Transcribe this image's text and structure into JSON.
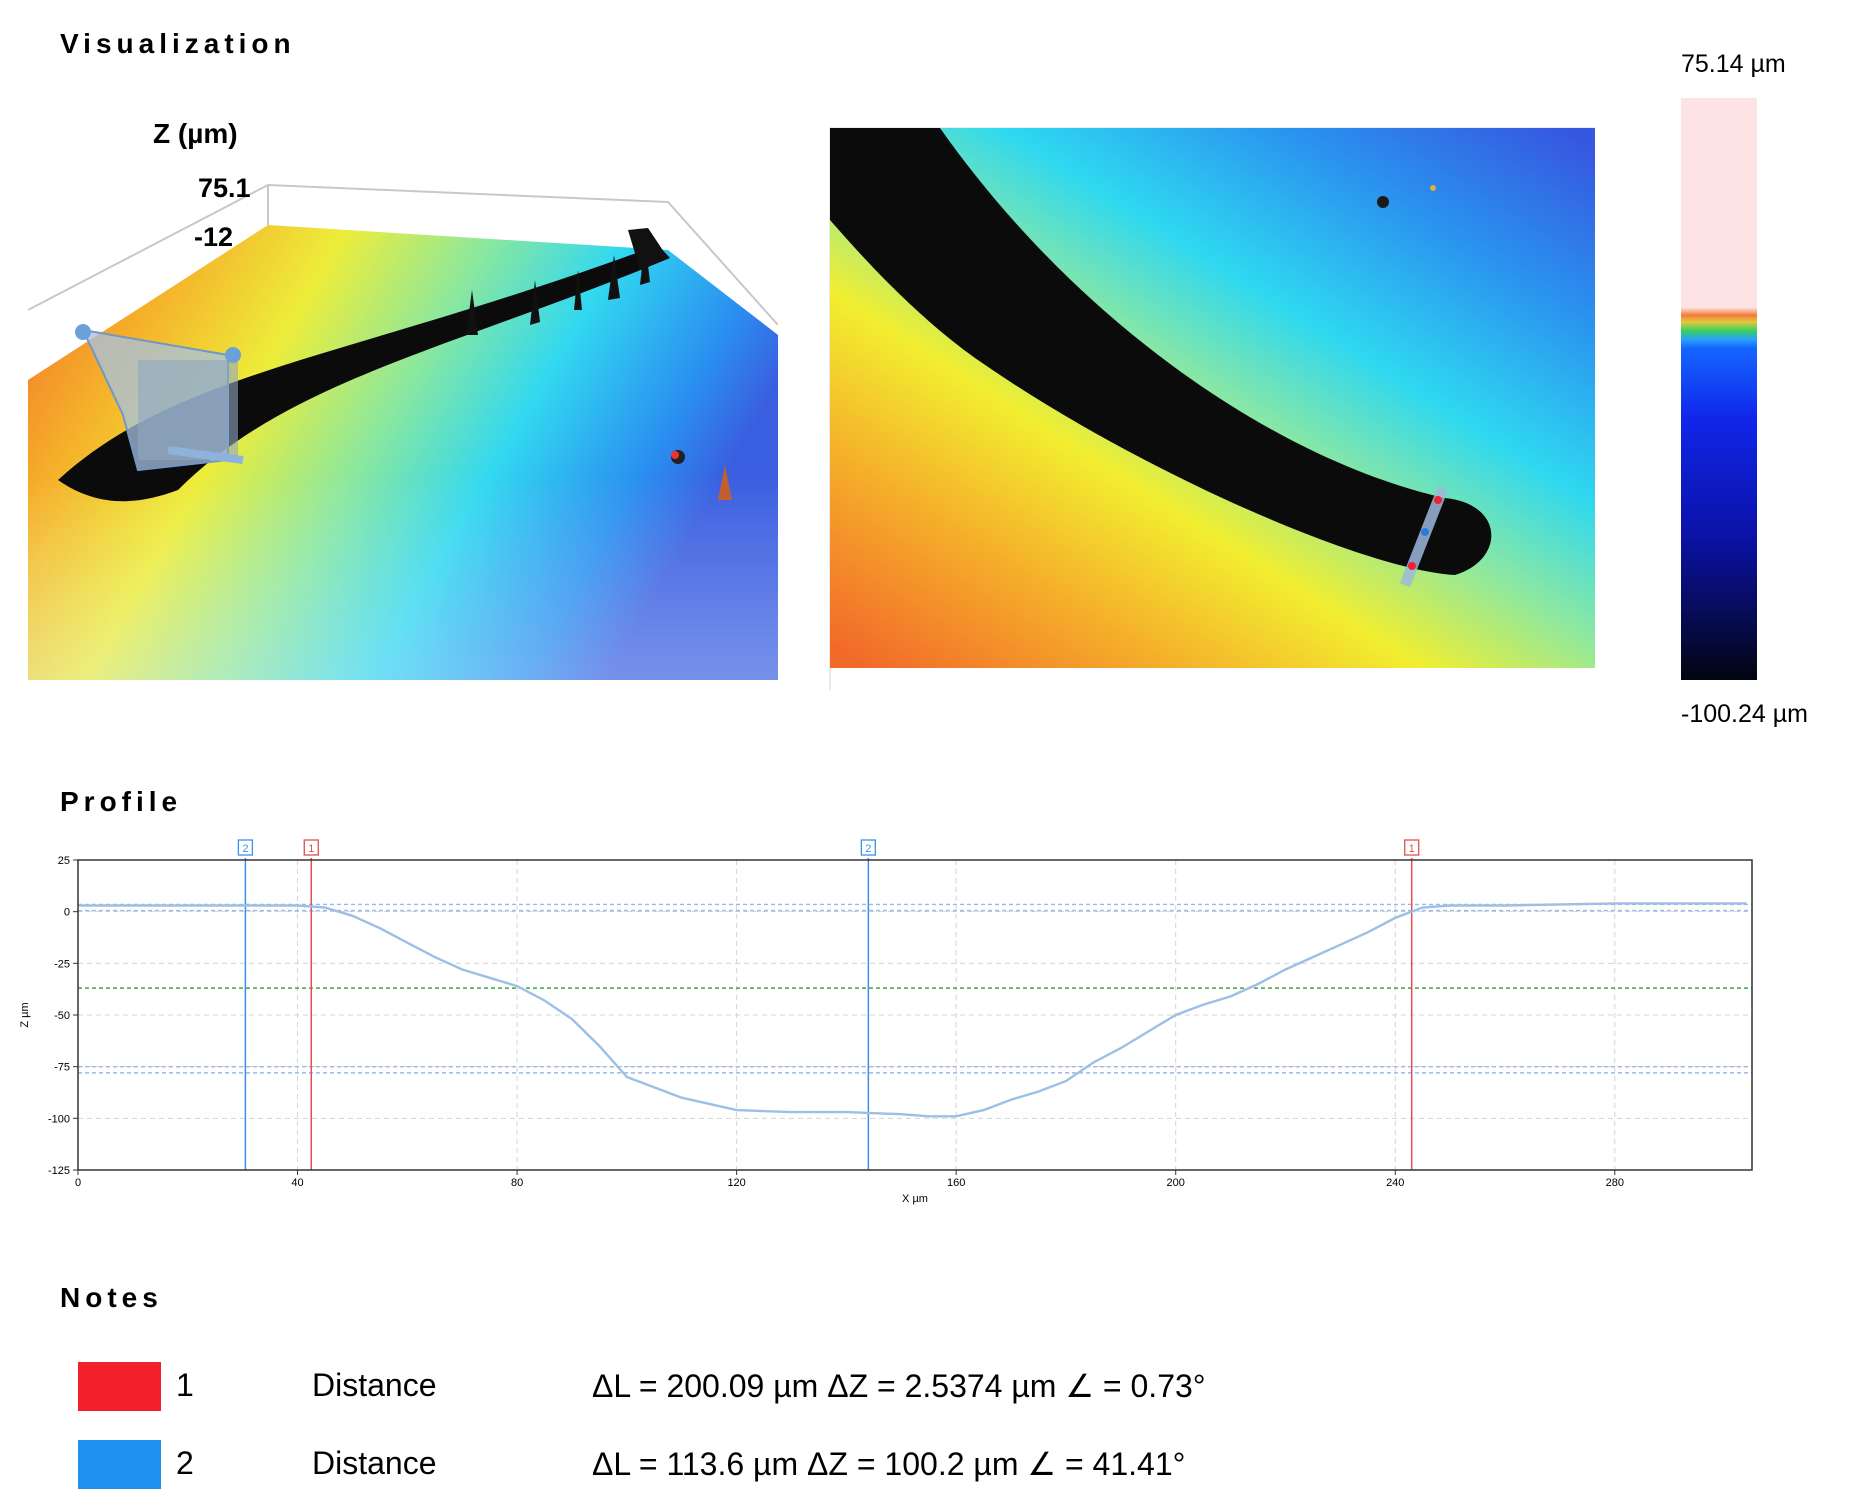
{
  "sections": {
    "visualization": "Visualization",
    "profile": "Profile",
    "notes": "Notes"
  },
  "view3d": {
    "z_label": "Z (µm)",
    "z_max_tick": "75.1",
    "z_second_tick": "-12"
  },
  "color_scale": {
    "max_label": "75.14 µm",
    "min_label": "-100.24 µm"
  },
  "chart_data": {
    "type": "line",
    "xlabel": "X µm",
    "ylabel": "Z µm",
    "xlim": [
      0,
      305
    ],
    "ylim": [
      -125,
      25
    ],
    "xticks": [
      0,
      40,
      80,
      120,
      160,
      200,
      240,
      280
    ],
    "yticks": [
      25,
      0,
      -25,
      -50,
      -75,
      -100,
      -125
    ],
    "series": [
      {
        "x": [
          0,
          20,
          40,
          45,
          50,
          55,
          60,
          65,
          70,
          75,
          80,
          85,
          90,
          95,
          100,
          110,
          120,
          130,
          140,
          150,
          155,
          160,
          165,
          170,
          175,
          180,
          185,
          190,
          195,
          200,
          205,
          210,
          215,
          220,
          225,
          230,
          235,
          240,
          245,
          250,
          260,
          280,
          300,
          304
        ],
        "y": [
          3,
          3,
          3,
          2,
          -2,
          -8,
          -15,
          -22,
          -28,
          -32,
          -36,
          -43,
          -52,
          -65,
          -80,
          -90,
          -96,
          -97,
          -97,
          -98,
          -99,
          -99,
          -96,
          -91,
          -87,
          -82,
          -73,
          -66,
          -58,
          -50,
          -45,
          -41,
          -35,
          -28,
          -22,
          -16,
          -10,
          -3,
          2,
          3,
          3,
          4,
          4,
          4
        ]
      }
    ],
    "reference_lines": [
      {
        "orientation": "horizontal",
        "y": 3.5,
        "color": "#9bb8ea"
      },
      {
        "orientation": "horizontal",
        "y": 0.5,
        "color": "#9bb8ea"
      },
      {
        "orientation": "horizontal",
        "y": -37,
        "color": "#3fa63f"
      },
      {
        "orientation": "horizontal",
        "y": -75,
        "color": "#9bb8ea"
      },
      {
        "orientation": "horizontal",
        "y": -78,
        "color": "#9bb8ea"
      }
    ],
    "cursors": [
      {
        "label": "2",
        "x": 30.5,
        "color": "#3b8ff0"
      },
      {
        "label": "1",
        "x": 42.5,
        "color": "#e05050"
      },
      {
        "label": "2",
        "x": 144,
        "color": "#3b8ff0"
      },
      {
        "label": "1",
        "x": 243,
        "color": "#e05050"
      }
    ],
    "grid": true,
    "line_color": "#9dbfe6"
  },
  "notes": [
    {
      "id": "1",
      "type": "Distance",
      "values": "ΔL = 200.09 µm ΔZ = 2.5374 µm  ∠ = 0.73°",
      "color": "#f2202b"
    },
    {
      "id": "2",
      "type": "Distance",
      "values": "ΔL = 113.6 µm ΔZ = 100.2 µm  ∠ = 41.41°",
      "color": "#1f8ff0"
    }
  ]
}
